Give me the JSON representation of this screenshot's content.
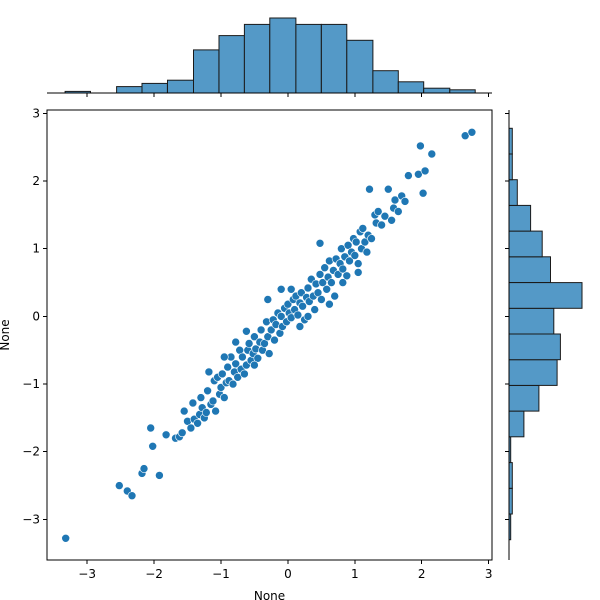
{
  "chart_data": {
    "type": "scatter",
    "title": "",
    "xlabel": "None",
    "ylabel": "None",
    "xlim": [
      -3.6,
      3.05
    ],
    "ylim": [
      -3.6,
      3.05
    ],
    "xticks": [
      -3,
      -2,
      -1,
      0,
      1,
      2,
      3
    ],
    "yticks": [
      -3,
      -2,
      -1,
      0,
      1,
      2,
      3
    ],
    "xtick_labels": [
      "−3",
      "−2",
      "−1",
      "0",
      "1",
      "2",
      "3"
    ],
    "ytick_labels": [
      "−3",
      "−2",
      "−1",
      "0",
      "1",
      "2",
      "3"
    ],
    "grid": false,
    "colors": {
      "point": "#1f77b4",
      "bar_fill": "#5499c7",
      "bar_edge": "#1a1a1a"
    },
    "marginal_x_histogram": {
      "bin_edges": [
        -3.33,
        -2.95,
        -2.56,
        -2.18,
        -1.8,
        -1.41,
        -1.03,
        -0.65,
        -0.27,
        0.12,
        0.5,
        0.88,
        1.27,
        1.65,
        2.03,
        2.42,
        2.8
      ],
      "counts": [
        1,
        0,
        4,
        6,
        8,
        27,
        36,
        43,
        47,
        43,
        43,
        33,
        14,
        7,
        3,
        2
      ]
    },
    "marginal_y_histogram": {
      "bin_edges": [
        -3.3,
        -2.92,
        -2.54,
        -2.16,
        -1.78,
        -1.4,
        -1.02,
        -0.64,
        -0.26,
        0.12,
        0.5,
        0.88,
        1.26,
        1.64,
        2.02,
        2.4,
        2.78
      ],
      "counts": [
        1,
        2,
        2,
        1,
        9,
        18,
        29,
        31,
        27,
        44,
        25,
        20,
        13,
        5,
        2,
        2
      ]
    },
    "points": [
      [
        -3.32,
        -3.28
      ],
      [
        -2.52,
        -2.5
      ],
      [
        -2.4,
        -2.58
      ],
      [
        -2.33,
        -2.65
      ],
      [
        -2.18,
        -2.32
      ],
      [
        -2.15,
        -2.25
      ],
      [
        -2.02,
        -1.92
      ],
      [
        -2.05,
        -1.65
      ],
      [
        -1.92,
        -2.35
      ],
      [
        -1.82,
        -1.75
      ],
      [
        -1.68,
        -1.8
      ],
      [
        -1.62,
        -1.78
      ],
      [
        -1.58,
        -1.72
      ],
      [
        -1.55,
        -1.4
      ],
      [
        -1.5,
        -1.55
      ],
      [
        -1.45,
        -1.65
      ],
      [
        -1.42,
        -1.28
      ],
      [
        -1.4,
        -1.52
      ],
      [
        -1.35,
        -1.58
      ],
      [
        -1.32,
        -1.45
      ],
      [
        -1.3,
        -1.2
      ],
      [
        -1.28,
        -1.35
      ],
      [
        -1.25,
        -1.5
      ],
      [
        -1.22,
        -1.42
      ],
      [
        -1.2,
        -1.1
      ],
      [
        -1.15,
        -1.3
      ],
      [
        -1.12,
        -1.25
      ],
      [
        -1.1,
        -0.95
      ],
      [
        -1.08,
        -1.4
      ],
      [
        -1.05,
        -0.9
      ],
      [
        -1.02,
        -1.15
      ],
      [
        -1.0,
        -1.05
      ],
      [
        -0.98,
        -0.85
      ],
      [
        -0.95,
        -1.2
      ],
      [
        -0.92,
        -0.98
      ],
      [
        -0.9,
        -0.75
      ],
      [
        -0.88,
        -0.95
      ],
      [
        -0.85,
        -0.6
      ],
      [
        -0.82,
        -1.0
      ],
      [
        -0.8,
        -0.82
      ],
      [
        -0.78,
        -0.7
      ],
      [
        -0.75,
        -0.9
      ],
      [
        -0.72,
        -0.5
      ],
      [
        -0.7,
        -0.78
      ],
      [
        -0.68,
        -0.6
      ],
      [
        -0.65,
        -0.85
      ],
      [
        -0.62,
        -0.72
      ],
      [
        -0.6,
        -0.5
      ],
      [
        -0.58,
        -0.4
      ],
      [
        -0.55,
        -0.65
      ],
      [
        -0.52,
        -0.55
      ],
      [
        -0.5,
        -0.3
      ],
      [
        -0.48,
        -0.48
      ],
      [
        -0.45,
        -0.62
      ],
      [
        -0.42,
        -0.38
      ],
      [
        -0.4,
        -0.2
      ],
      [
        -0.38,
        -0.5
      ],
      [
        -0.35,
        -0.4
      ],
      [
        -0.32,
        -0.08
      ],
      [
        -0.3,
        -0.3
      ],
      [
        -0.28,
        -0.55
      ],
      [
        -0.25,
        -0.2
      ],
      [
        -0.22,
        -0.05
      ],
      [
        -0.2,
        -0.35
      ],
      [
        -0.18,
        -0.12
      ],
      [
        -0.15,
        0.05
      ],
      [
        -0.12,
        -0.25
      ],
      [
        -0.1,
        0.0
      ],
      [
        -0.08,
        -0.15
      ],
      [
        -0.05,
        0.12
      ],
      [
        -0.02,
        -0.08
      ],
      [
        0.0,
        0.18
      ],
      [
        0.02,
        0.05
      ],
      [
        0.05,
        -0.02
      ],
      [
        0.08,
        0.25
      ],
      [
        0.1,
        0.1
      ],
      [
        0.12,
        0.3
      ],
      [
        0.15,
        0.02
      ],
      [
        0.18,
        0.2
      ],
      [
        0.2,
        0.35
      ],
      [
        0.22,
        0.15
      ],
      [
        0.25,
        -0.05
      ],
      [
        0.28,
        0.28
      ],
      [
        0.3,
        0.42
      ],
      [
        0.32,
        0.22
      ],
      [
        0.35,
        0.55
      ],
      [
        0.38,
        0.3
      ],
      [
        0.4,
        0.1
      ],
      [
        0.42,
        0.48
      ],
      [
        0.45,
        0.35
      ],
      [
        0.48,
        0.62
      ],
      [
        0.5,
        0.25
      ],
      [
        0.52,
        0.5
      ],
      [
        0.55,
        0.72
      ],
      [
        0.58,
        0.4
      ],
      [
        0.6,
        0.58
      ],
      [
        0.62,
        0.82
      ],
      [
        0.65,
        0.5
      ],
      [
        0.68,
        0.68
      ],
      [
        0.7,
        0.3
      ],
      [
        0.72,
        0.85
      ],
      [
        0.75,
        0.62
      ],
      [
        0.78,
        0.78
      ],
      [
        0.8,
        1.0
      ],
      [
        0.82,
        0.7
      ],
      [
        0.85,
        0.88
      ],
      [
        0.88,
        0.6
      ],
      [
        0.9,
        1.05
      ],
      [
        0.92,
        0.82
      ],
      [
        0.95,
        0.95
      ],
      [
        0.98,
        1.15
      ],
      [
        1.0,
        0.9
      ],
      [
        1.02,
        1.1
      ],
      [
        1.05,
        0.78
      ],
      [
        1.08,
        1.25
      ],
      [
        1.1,
        1.0
      ],
      [
        1.12,
        1.3
      ],
      [
        1.15,
        1.1
      ],
      [
        1.18,
        0.95
      ],
      [
        1.2,
        1.2
      ],
      [
        1.22,
        1.88
      ],
      [
        1.25,
        1.15
      ],
      [
        1.3,
        1.5
      ],
      [
        1.32,
        1.38
      ],
      [
        1.35,
        1.55
      ],
      [
        1.4,
        1.35
      ],
      [
        1.45,
        1.48
      ],
      [
        1.5,
        1.88
      ],
      [
        1.55,
        1.42
      ],
      [
        1.58,
        1.6
      ],
      [
        1.6,
        1.72
      ],
      [
        1.65,
        1.55
      ],
      [
        1.7,
        1.78
      ],
      [
        1.75,
        1.7
      ],
      [
        1.8,
        2.08
      ],
      [
        1.95,
        2.1
      ],
      [
        2.02,
        1.82
      ],
      [
        2.05,
        2.15
      ],
      [
        2.15,
        2.4
      ],
      [
        1.98,
        2.52
      ],
      [
        2.65,
        2.67
      ],
      [
        2.75,
        2.72
      ],
      [
        0.48,
        1.08
      ],
      [
        -0.78,
        -0.38
      ],
      [
        -0.3,
        0.25
      ],
      [
        -0.1,
        0.4
      ],
      [
        0.05,
        0.4
      ],
      [
        0.3,
        0.0
      ],
      [
        -0.5,
        -0.72
      ],
      [
        -0.62,
        -0.22
      ],
      [
        -0.95,
        -0.6
      ],
      [
        -1.18,
        -0.82
      ],
      [
        0.62,
        0.18
      ],
      [
        0.82,
        0.5
      ],
      [
        1.05,
        0.65
      ],
      [
        0.18,
        -0.15
      ]
    ]
  }
}
